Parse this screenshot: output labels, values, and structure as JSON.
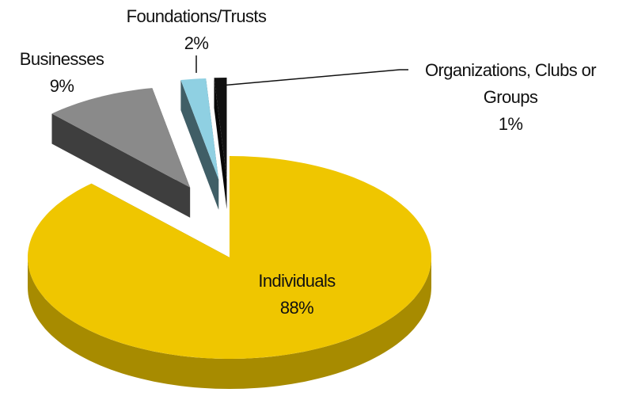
{
  "chart_data": {
    "type": "pie",
    "categories": [
      "Individuals",
      "Businesses",
      "Foundations/Trusts",
      "Organizations, Clubs or Groups"
    ],
    "values": [
      88,
      9,
      2,
      1
    ],
    "value_labels": [
      "88%",
      "9%",
      "2%",
      "1%"
    ],
    "colors": [
      "#efc600",
      "#8a8a8a",
      "#8fd0e2",
      "#111111"
    ]
  }
}
